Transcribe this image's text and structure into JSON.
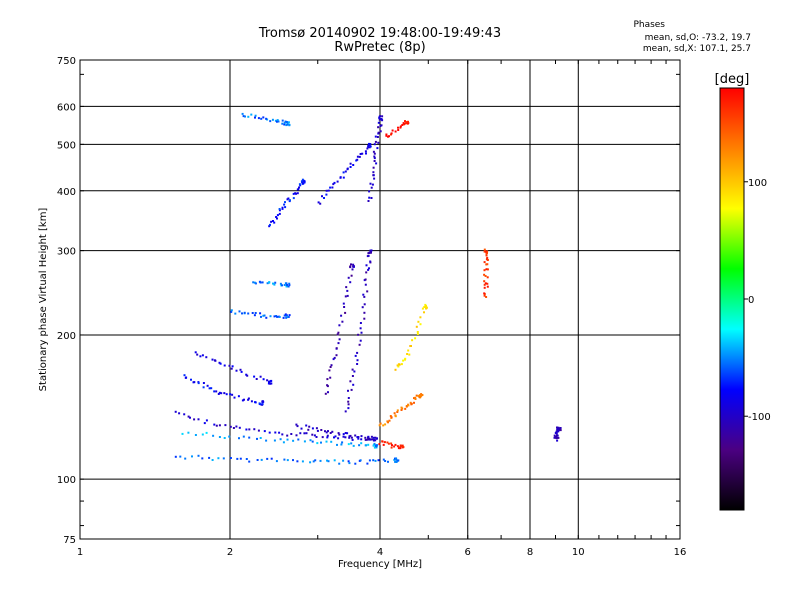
{
  "header": {
    "title_line1": "Tromsø 20140902 19:48:00-19:49:43",
    "title_line2": "RwPretec (8p)",
    "phases_heading": "Phases",
    "phases_O": "mean, sd,O: -73.2, 19.7",
    "phases_X": "mean, sd,X: 107.1, 25.7"
  },
  "chart_data": {
    "type": "scatter",
    "title": "Tromsø 20140902 19:48:00-19:49:43",
    "subtitle": "RwPretec (8p)",
    "xlabel": "Frequency [MHz]",
    "ylabel": "Stationary phase Virtual Height [km]",
    "x_scale": "log",
    "y_scale": "log",
    "xlim": [
      1,
      16
    ],
    "ylim": [
      75,
      750
    ],
    "xticks": [
      1,
      2,
      4,
      6,
      8,
      10,
      16
    ],
    "xticklabels": [
      "1",
      "2",
      "4",
      "6",
      "8",
      "10",
      "16"
    ],
    "yticks": [
      75,
      100,
      200,
      300,
      400,
      500,
      600,
      750
    ],
    "yticklabels": [
      "75",
      "100",
      "200",
      "300",
      "400",
      "500",
      "600",
      "750"
    ],
    "grid": true,
    "colorbar": {
      "label": "[deg]",
      "range": [
        -180,
        180
      ],
      "ticks": [
        100,
        0,
        -100
      ],
      "colors": [
        "#000000",
        "#4b0082",
        "#0000ff",
        "#00ffff",
        "#00ff00",
        "#ffff00",
        "#ff8000",
        "#ff0000"
      ]
    },
    "points_note_colors": "phase in degrees",
    "traces": [
      {
        "x": [
          1.55,
          1.9,
          2.3,
          2.8,
          3.3,
          3.8,
          4.3
        ],
        "y": [
          112,
          111,
          110,
          110,
          109,
          109,
          110
        ],
        "phase": -55
      },
      {
        "x": [
          1.6,
          2.0,
          2.5,
          3.0,
          3.5,
          3.9
        ],
        "y": [
          126,
          123,
          121,
          120,
          119,
          118
        ],
        "phase": -45
      },
      {
        "x": [
          1.55,
          1.8,
          2.1,
          2.5,
          2.9,
          3.3,
          3.8
        ],
        "y": [
          138,
          132,
          128,
          125,
          124,
          123,
          122
        ],
        "phase": -95
      },
      {
        "x": [
          1.6,
          1.75,
          1.9,
          2.1,
          2.3
        ],
        "y": [
          165,
          158,
          152,
          148,
          145
        ],
        "phase": -80
      },
      {
        "x": [
          1.7,
          1.9,
          2.1,
          2.4
        ],
        "y": [
          185,
          175,
          168,
          160
        ],
        "phase": -90
      },
      {
        "x": [
          2.7,
          3.0,
          3.3,
          3.6,
          3.9
        ],
        "y": [
          130,
          127,
          125,
          123,
          122
        ],
        "phase": -100
      },
      {
        "x": [
          3.4,
          3.5,
          3.6,
          3.7,
          3.75,
          3.8
        ],
        "y": [
          140,
          160,
          190,
          230,
          270,
          300
        ],
        "phase": -105
      },
      {
        "x": [
          3.1,
          3.2,
          3.3,
          3.4,
          3.5
        ],
        "y": [
          150,
          175,
          200,
          240,
          280
        ],
        "phase": -110
      },
      {
        "x": [
          2.4,
          2.5,
          2.6,
          2.7,
          2.8
        ],
        "y": [
          340,
          360,
          380,
          400,
          420
        ],
        "phase": -75
      },
      {
        "x": [
          3.0,
          3.2,
          3.4,
          3.6,
          3.8
        ],
        "y": [
          380,
          410,
          440,
          470,
          500
        ],
        "phase": -85
      },
      {
        "x": [
          3.8,
          3.85,
          3.9,
          3.95,
          4.0
        ],
        "y": [
          380,
          430,
          480,
          530,
          570
        ],
        "phase": -100
      },
      {
        "x": [
          2.1,
          2.3,
          2.5,
          2.6
        ],
        "y": [
          580,
          570,
          560,
          555
        ],
        "phase": -55
      },
      {
        "x": [
          4.0,
          4.2,
          4.4,
          4.6,
          4.8
        ],
        "y": [
          130,
          135,
          140,
          145,
          150
        ],
        "phase": 130
      },
      {
        "x": [
          4.0,
          4.2,
          4.4
        ],
        "y": [
          120,
          118,
          117
        ],
        "phase": 170
      },
      {
        "x": [
          4.3,
          4.5,
          4.7,
          4.9
        ],
        "y": [
          170,
          180,
          200,
          230
        ],
        "phase": 90
      },
      {
        "x": [
          4.1,
          4.3,
          4.5
        ],
        "y": [
          520,
          540,
          560
        ],
        "phase": 175
      },
      {
        "x": [
          6.5,
          6.5,
          6.5,
          6.5
        ],
        "y": [
          240,
          260,
          280,
          300
        ],
        "phase": 160
      },
      {
        "x": [
          9.0,
          9.0,
          9.1
        ],
        "y": [
          122,
          125,
          128
        ],
        "phase": -105
      },
      {
        "x": [
          2.0,
          2.2,
          2.4,
          2.6
        ],
        "y": [
          225,
          222,
          220,
          220
        ],
        "phase": -60
      },
      {
        "x": [
          2.2,
          2.4,
          2.6
        ],
        "y": [
          260,
          258,
          256
        ],
        "phase": -50
      }
    ]
  }
}
